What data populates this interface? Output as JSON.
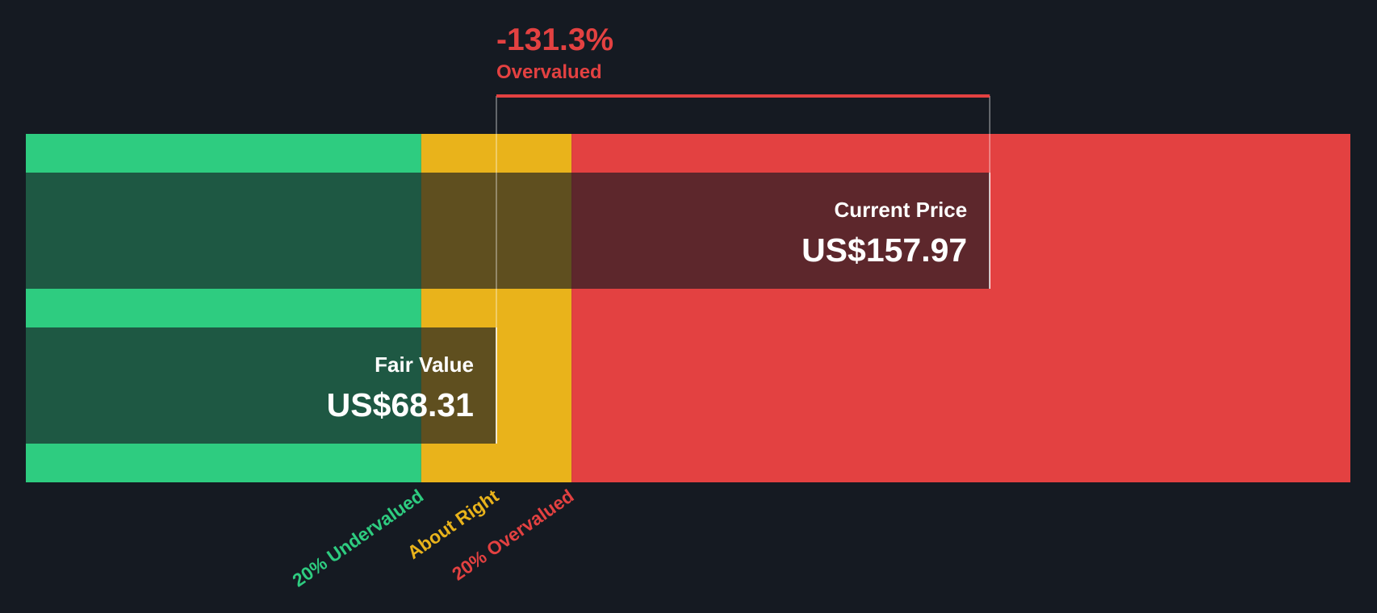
{
  "chart_data": {
    "type": "valuation",
    "difference": {
      "value": -131.3,
      "label": "-131.3%"
    },
    "verdict": "Overvalued",
    "xlim": [
      -17.2,
      223.5
    ],
    "zones": [
      {
        "label": "20% Undervalued",
        "color": "#2ecc80",
        "from": -17.2,
        "to": 54.65
      },
      {
        "label": "About Right",
        "color": "#e9b31b",
        "from": 54.65,
        "to": 81.97
      },
      {
        "label": "20% Overvalued",
        "color": "#e34141",
        "from": 81.97,
        "to": 223.5
      }
    ],
    "bars": [
      {
        "name": "Current Price",
        "value": 157.97,
        "value_label": "US$157.97"
      },
      {
        "name": "Fair Value",
        "value": 68.31,
        "value_label": "US$68.31"
      }
    ],
    "verdict_color": "#e34141"
  }
}
